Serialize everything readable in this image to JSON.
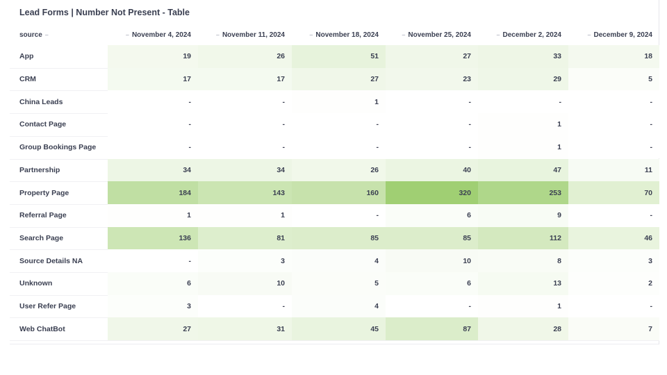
{
  "title": "Lead Forms | Number Not Present - Table",
  "table": {
    "columns": [
      "source",
      "November 4, 2024",
      "November 11, 2024",
      "November 18, 2024",
      "November 25, 2024",
      "December 2, 2024",
      "December 9, 2024"
    ],
    "rows": [
      {
        "label": "App",
        "values": [
          19,
          26,
          51,
          27,
          33,
          18
        ]
      },
      {
        "label": "CRM",
        "values": [
          17,
          17,
          27,
          23,
          29,
          5
        ]
      },
      {
        "label": "China Leads",
        "values": [
          "-",
          "-",
          1,
          "-",
          "-",
          "-"
        ]
      },
      {
        "label": "Contact Page",
        "values": [
          "-",
          "-",
          "-",
          "-",
          1,
          "-"
        ]
      },
      {
        "label": "Group Bookings Page",
        "values": [
          "-",
          "-",
          "-",
          "-",
          1,
          "-"
        ]
      },
      {
        "label": "Partnership",
        "values": [
          34,
          34,
          26,
          40,
          47,
          11
        ]
      },
      {
        "label": "Property Page",
        "values": [
          184,
          143,
          160,
          320,
          253,
          70
        ]
      },
      {
        "label": "Referral Page",
        "values": [
          1,
          1,
          "-",
          6,
          9,
          "-"
        ]
      },
      {
        "label": "Search Page",
        "values": [
          136,
          81,
          85,
          85,
          112,
          46
        ]
      },
      {
        "label": "Source Details NA",
        "values": [
          "-",
          3,
          4,
          10,
          8,
          3
        ]
      },
      {
        "label": "Unknown",
        "values": [
          6,
          10,
          5,
          6,
          13,
          2
        ]
      },
      {
        "label": "User Refer Page",
        "values": [
          3,
          "-",
          4,
          "-",
          1,
          "-"
        ]
      },
      {
        "label": "Web ChatBot",
        "values": [
          27,
          31,
          45,
          87,
          28,
          7
        ]
      }
    ]
  }
}
